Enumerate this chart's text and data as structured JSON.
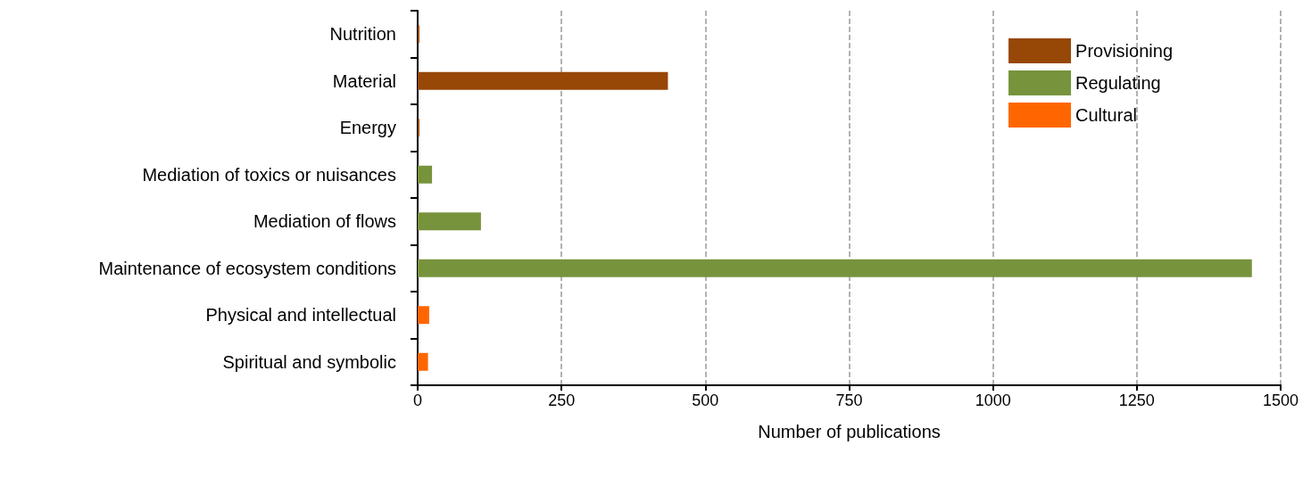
{
  "chart_data": {
    "type": "bar",
    "orientation": "horizontal",
    "xlabel": "Number of publications",
    "categories": [
      "Nutrition",
      "Material",
      "Energy",
      "Mediation of toxics or nuisances",
      "Mediation of flows",
      "Maintenance of ecosystem conditions",
      "Physical and intellectual",
      "Spiritual and symbolic"
    ],
    "series": [
      {
        "name": "Provisioning",
        "color": "#974706",
        "values": [
          3,
          435,
          3,
          null,
          null,
          null,
          null,
          null
        ]
      },
      {
        "name": "Regulating",
        "color": "#77933c",
        "values": [
          null,
          null,
          null,
          25,
          110,
          1450,
          null,
          null
        ]
      },
      {
        "name": "Cultural",
        "color": "#ff6600",
        "values": [
          null,
          null,
          null,
          null,
          null,
          null,
          20,
          18
        ]
      }
    ],
    "xlim": [
      0,
      1500
    ],
    "xticks": [
      0,
      250,
      500,
      750,
      1000,
      1250,
      1500
    ],
    "grid": "x",
    "legend": "top right",
    "line_style": "dashed"
  }
}
